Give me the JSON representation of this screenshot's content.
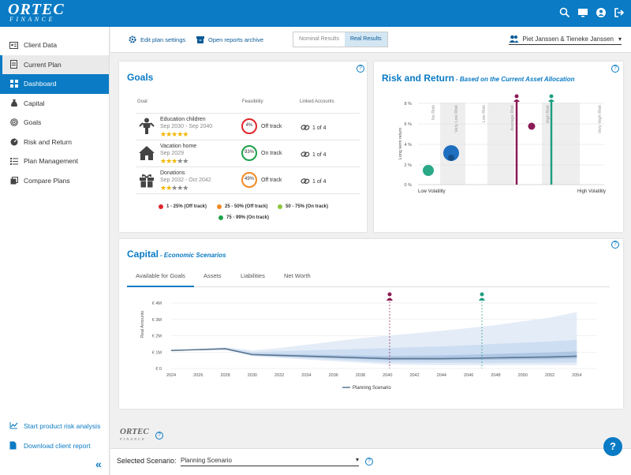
{
  "brand": {
    "name": "ORTEC",
    "sub": "FINANCE"
  },
  "topbar": {
    "icons": [
      "search-icon",
      "monitor-icon",
      "user-icon",
      "logout-icon"
    ]
  },
  "sidebar": {
    "items": [
      {
        "label": "Client Data",
        "icon": "id-card-icon"
      },
      {
        "label": "Current Plan",
        "icon": "document-icon"
      },
      {
        "label": "Dashboard",
        "icon": "grid-icon"
      },
      {
        "label": "Capital",
        "icon": "money-bag-icon"
      },
      {
        "label": "Goals",
        "icon": "target-icon"
      },
      {
        "label": "Risk and Return",
        "icon": "gauge-icon"
      },
      {
        "label": "Plan Management",
        "icon": "list-icon"
      },
      {
        "label": "Compare Plans",
        "icon": "copy-icon"
      }
    ],
    "start_risk": "Start product risk analysis",
    "download": "Download client report"
  },
  "toolbar": {
    "edit_plan": "Edit plan settings",
    "open_reports": "Open reports archive",
    "nominal": "Nominal Results",
    "real": "Real Results",
    "client": "Piet Janssen & Tieneke Janssen"
  },
  "goals": {
    "title": "Goals",
    "headers": {
      "goal": "Goal",
      "feasibility": "Feasibility",
      "linked": "Linked Accounts"
    },
    "rows": [
      {
        "name": "Education children",
        "dates": "Sep 2030 - Sep 2040",
        "stars": 5,
        "pct": "4%",
        "status": "Off track",
        "color": "#e0262b",
        "linked": "1 of 4",
        "icon": "child-icon"
      },
      {
        "name": "Vacation home",
        "dates": "Sep 2029",
        "stars": 3,
        "pct": "93%",
        "status": "On track",
        "color": "#1fa04a",
        "linked": "1 of 4",
        "icon": "house-icon"
      },
      {
        "name": "Donations",
        "dates": "Sep 2032 - Oct 2042",
        "stars": 2,
        "pct": "49%",
        "status": "Off track",
        "color": "#f08a24",
        "linked": "1 of 4",
        "icon": "gift-icon"
      }
    ],
    "legend": [
      {
        "label": "1 - 25% (Off track)",
        "color": "#e0262b"
      },
      {
        "label": "25 - 50% (Off track)",
        "color": "#f08a24"
      },
      {
        "label": "50 - 75% (On track)",
        "color": "#8cc63f"
      },
      {
        "label": "75 - 99% (On track)",
        "color": "#1fa04a"
      }
    ]
  },
  "risk": {
    "title": "Risk and Return",
    "subtitle": "- Based on the Current Asset Allocation",
    "ylabel": "Long term return",
    "xlabel_low": "Low Volatility",
    "xlabel_high": "High Volatility",
    "yticks": [
      "8 %",
      "6 %",
      "4 %",
      "2 %",
      "0 %"
    ],
    "bands": [
      "No Risk",
      "Very Low Risk",
      "Low Risk",
      "Average Risk",
      "High Risk",
      "Very High Risk"
    ],
    "colors": {
      "maroon": "#8b1a55",
      "teal": "#1e9e82",
      "blue": "#1e6fbf",
      "green": "#2aa888"
    }
  },
  "capital": {
    "title": "Capital",
    "subtitle": "- Economic Scenarios",
    "tabs": [
      "Available for Goals",
      "Assets",
      "Liabilities",
      "Net Worth"
    ],
    "legend": "Planning Scenario"
  },
  "chart_data": {
    "type": "area",
    "ylabel": "Real Amounts",
    "yticks": [
      "€ 4M",
      "€ 3M",
      "€ 2M",
      "€ 1M",
      "€ 0"
    ],
    "ylim": [
      0,
      4
    ],
    "x": [
      2024,
      2026,
      2028,
      2030,
      2032,
      2034,
      2036,
      2038,
      2040,
      2042,
      2044,
      2046,
      2048,
      2050,
      2052,
      2054
    ],
    "series": [
      {
        "name": "Planning Scenario",
        "values": [
          1.1,
          1.15,
          1.2,
          0.85,
          0.8,
          0.75,
          0.7,
          0.65,
          0.6,
          0.6,
          0.6,
          0.62,
          0.65,
          0.68,
          0.7,
          0.75
        ]
      }
    ]
  },
  "scenario": {
    "label": "Selected Scenario:",
    "value": "Planning Scenario"
  },
  "help": "?"
}
